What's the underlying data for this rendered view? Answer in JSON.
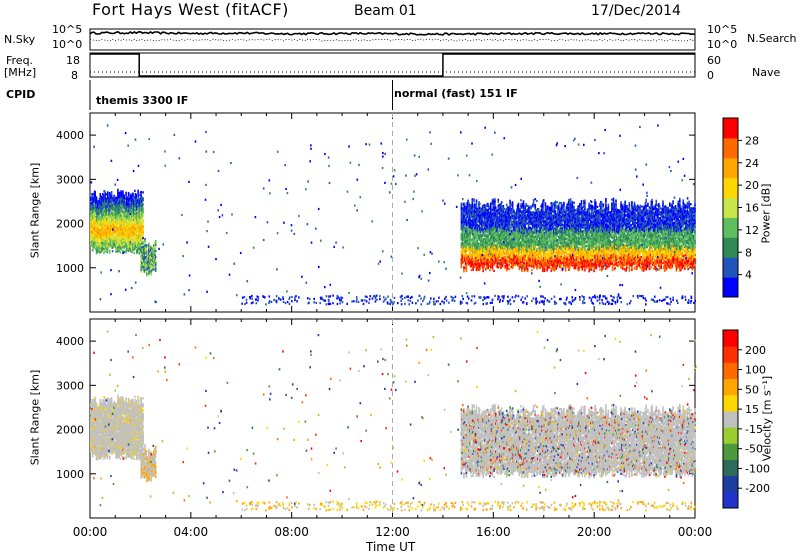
{
  "header": {
    "title": "Fort Hays West (fitACF)",
    "beam": "Beam 01",
    "date": "17/Dec/2014"
  },
  "side_labels": {
    "n_sky": "N.Sky",
    "freq": "Freq.",
    "mhz": "[MHz]",
    "cpid": "CPID",
    "n_search": "N.Search",
    "nave": "Nave"
  },
  "noise_axis": {
    "top": "10^5",
    "bottom": "10^0"
  },
  "freq_axis": {
    "left_ticks": [
      "18",
      "8"
    ],
    "right_ticks": [
      "60",
      "0"
    ]
  },
  "cpid_segments": [
    {
      "label": "themis 3300 IF",
      "start_hour": 0
    },
    {
      "label": "normal (fast) 151 IF",
      "start_hour": 12
    }
  ],
  "xaxis": {
    "label": "Time UT",
    "ticks": [
      "00:00",
      "04:00",
      "08:00",
      "12:00",
      "16:00",
      "20:00",
      "00:00"
    ],
    "hours": [
      0,
      4,
      8,
      12,
      16,
      20,
      24
    ]
  },
  "power_panel": {
    "ylabel": "Slant Range [km]",
    "yticks": [
      1000,
      2000,
      3000,
      4000
    ],
    "colorbar_label": "Power [dB]",
    "colorbar_ticks": [
      "28",
      "24",
      "20",
      "16",
      "12",
      "8",
      "4"
    ],
    "colors": [
      "#0000ff",
      "#2255bb",
      "#2e8b57",
      "#5fbf5f",
      "#c8e64a",
      "#ffd700",
      "#ffa500",
      "#ff6a00",
      "#ff0000"
    ]
  },
  "velocity_panel": {
    "ylabel": "Slant Range [km]",
    "yticks": [
      1000,
      2000,
      3000,
      4000
    ],
    "colorbar_label": "Velocity [m s⁻¹]",
    "colorbar_ticks": [
      "200",
      "100",
      "50",
      "15",
      "-15",
      "-50",
      "-100",
      "-200"
    ],
    "colors": [
      "#2233cc",
      "#1e3fa0",
      "#2e6b5a",
      "#4d9a3c",
      "#9acd32",
      "#c0c0c0",
      "#ffd700",
      "#ffa500",
      "#ff6a00",
      "#ff3000",
      "#ff0000"
    ]
  },
  "chart_data": [
    {
      "type": "line",
      "name": "noise",
      "x_hours": [
        0,
        2,
        4,
        6,
        8,
        10,
        12,
        14,
        16,
        18,
        20,
        22,
        24
      ],
      "y_log": [
        4.2,
        4.3,
        4.1,
        4.2,
        4.0,
        4.1,
        4.0,
        3.9,
        4.0,
        4.1,
        4.0,
        4.1,
        4.0
      ]
    },
    {
      "type": "line",
      "name": "frequency",
      "ylim": [
        8,
        18
      ],
      "x_hours": [
        0,
        1.95,
        1.95,
        14,
        14,
        24
      ],
      "y": [
        18,
        18,
        8,
        8,
        18,
        18
      ]
    },
    {
      "type": "heatmap",
      "name": "power",
      "xlim": [
        0,
        24
      ],
      "ylim": [
        0,
        4500
      ],
      "regions": [
        {
          "t0": 0,
          "t1": 2.1,
          "r0": 1400,
          "r1": 2600,
          "peak_db": 22
        },
        {
          "t0": 2,
          "t1": 2.6,
          "r0": 900,
          "r1": 1500,
          "peak_db": 12
        },
        {
          "t0": 14.7,
          "t1": 24,
          "r0": 1000,
          "r1": 2400,
          "peak_db": 26
        }
      ]
    },
    {
      "type": "heatmap",
      "name": "velocity",
      "xlim": [
        0,
        24
      ],
      "ylim": [
        0,
        4500
      ],
      "regions": [
        {
          "t0": 0,
          "t1": 2.1,
          "r0": 1400,
          "r1": 2600,
          "velocity": 0
        },
        {
          "t0": 14.7,
          "t1": 24,
          "r0": 1000,
          "r1": 2400,
          "velocity": 0
        }
      ]
    }
  ]
}
